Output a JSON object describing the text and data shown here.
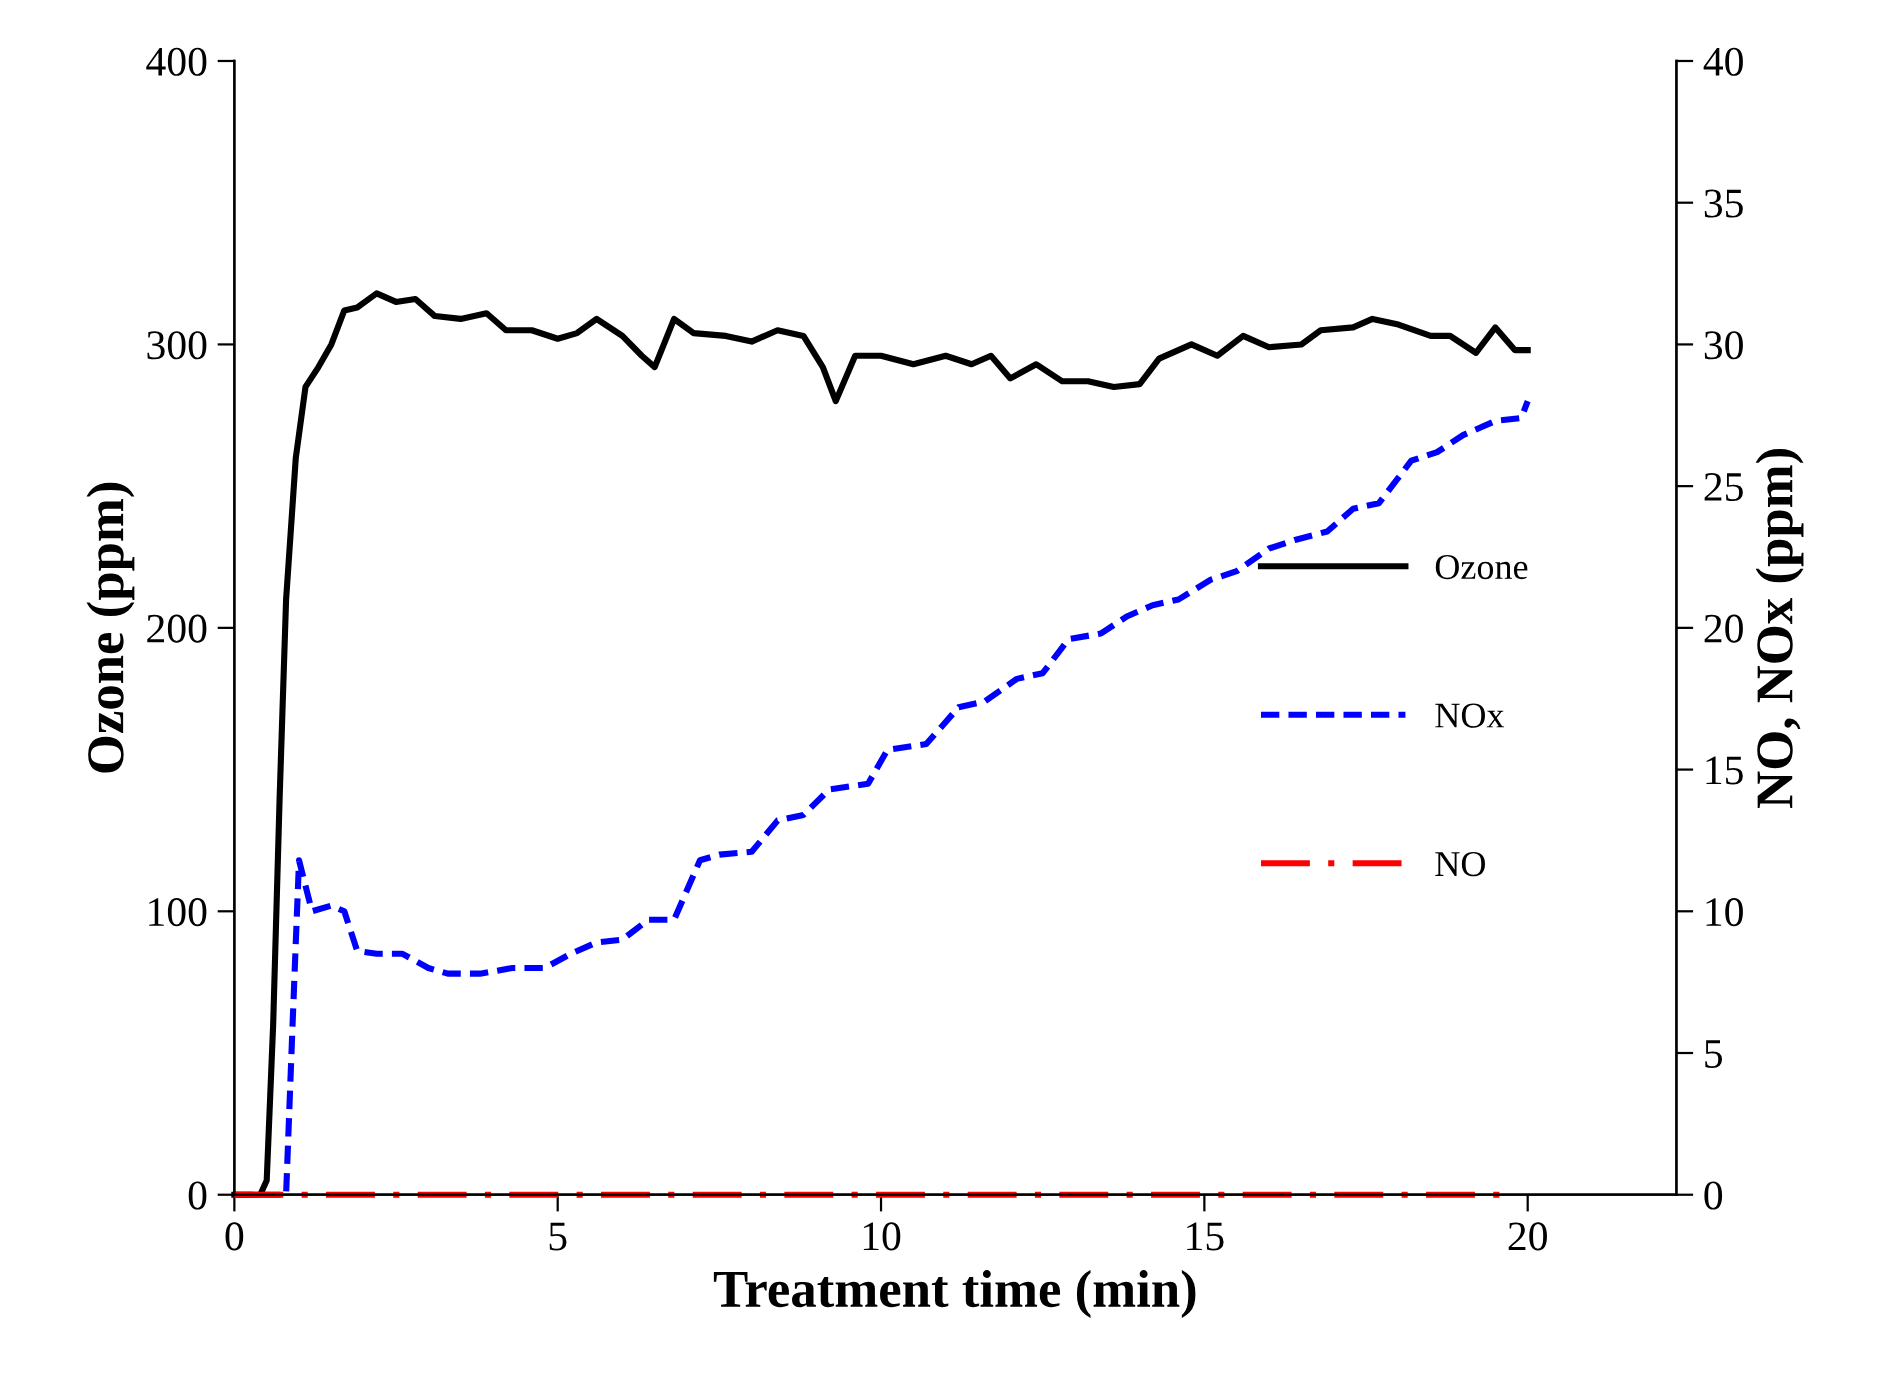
{
  "chart_data": {
    "type": "line",
    "xlabel": "Treatment time (min)",
    "ylabel": "Ozone (ppm)",
    "y2label": "NO, NOx (ppm)",
    "xlim": [
      0,
      22.3
    ],
    "xticks": [
      0,
      5,
      10,
      15,
      20
    ],
    "ylim": [
      0,
      400
    ],
    "yticks": [
      0,
      100,
      200,
      300,
      400
    ],
    "y2lim": [
      0,
      40
    ],
    "y2ticks": [
      0,
      5,
      10,
      15,
      20,
      25,
      30,
      35,
      40
    ],
    "grid": false,
    "legend": "right",
    "marker": "none",
    "series": [
      {
        "name": "Ozone",
        "color": "#000000",
        "line_style": "solid",
        "axis": "y",
        "x": [
          0,
          0.4,
          0.5,
          0.6,
          0.7,
          0.8,
          0.95,
          1.1,
          1.3,
          1.5,
          1.7,
          1.9,
          2.2,
          2.5,
          2.8,
          3.1,
          3.5,
          3.9,
          4.2,
          4.6,
          5.0,
          5.3,
          5.6,
          6.0,
          6.3,
          6.5,
          6.8,
          7.1,
          7.6,
          8.0,
          8.4,
          8.8,
          9.1,
          9.3,
          9.6,
          10.0,
          10.5,
          11.0,
          11.4,
          11.7,
          12.0,
          12.4,
          12.8,
          13.2,
          13.6,
          14.0,
          14.3,
          14.8,
          15.2,
          15.6,
          16.0,
          16.5,
          16.8,
          17.3,
          17.6,
          18.0,
          18.5,
          18.8,
          19.2,
          19.5,
          19.8,
          20.0
        ],
        "values": [
          0,
          0,
          5,
          60,
          140,
          210,
          260,
          285,
          292,
          300,
          312,
          313,
          318,
          315,
          316,
          310,
          309,
          311,
          305,
          305,
          302,
          304,
          309,
          303,
          296,
          292,
          309,
          304,
          303,
          301,
          305,
          303,
          292,
          280,
          296,
          296,
          293,
          296,
          293,
          296,
          288,
          293,
          287,
          287,
          285,
          286,
          295,
          300,
          296,
          303,
          299,
          300,
          305,
          306,
          309,
          307,
          303,
          303,
          297,
          306,
          298,
          298
        ]
      },
      {
        "name": "NOx",
        "color": "#0000ff",
        "line_style": "dashed",
        "axis": "y2",
        "x": [
          0,
          0.8,
          0.9,
          1.0,
          1.2,
          1.5,
          1.7,
          1.9,
          2.2,
          2.6,
          3.0,
          3.3,
          3.8,
          4.3,
          4.8,
          5.2,
          5.6,
          6.0,
          6.4,
          6.8,
          7.2,
          7.5,
          8.0,
          8.4,
          8.8,
          9.2,
          9.8,
          10.1,
          10.7,
          11.2,
          11.6,
          12.1,
          12.5,
          12.9,
          13.4,
          13.8,
          14.2,
          14.6,
          15.1,
          15.5,
          16.0,
          16.4,
          16.9,
          17.3,
          17.7,
          18.2,
          18.6,
          19.0,
          19.5,
          19.9,
          20.0
        ],
        "values": [
          0,
          0,
          6,
          11.8,
          10,
          10.2,
          10,
          8.6,
          8.5,
          8.5,
          8.0,
          7.8,
          7.8,
          8.0,
          8.0,
          8.5,
          8.9,
          9.0,
          9.7,
          9.7,
          11.8,
          12.0,
          12.1,
          13.2,
          13.4,
          14.3,
          14.5,
          15.7,
          15.9,
          17.2,
          17.4,
          18.2,
          18.4,
          19.6,
          19.8,
          20.4,
          20.8,
          21.0,
          21.7,
          22.0,
          22.8,
          23.1,
          23.4,
          24.2,
          24.4,
          25.9,
          26.2,
          26.8,
          27.3,
          27.4,
          28.0
        ]
      },
      {
        "name": "NO",
        "color": "#ff0000",
        "line_style": "dashdot",
        "axis": "y2",
        "x": [
          0,
          5,
          10,
          15,
          19.8
        ],
        "values": [
          0,
          0,
          0,
          0,
          0
        ]
      }
    ]
  }
}
